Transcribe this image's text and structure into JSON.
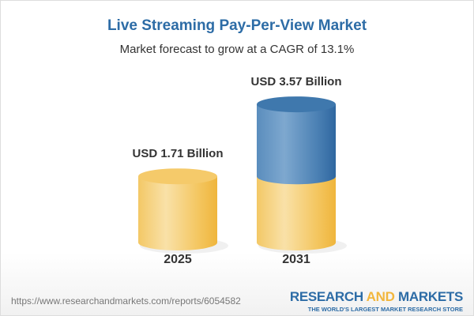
{
  "chart_data": {
    "type": "bar",
    "title": "Live Streaming Pay-Per-View Market",
    "subtitle": "Market forecast to grow at a CAGR of 13.1%",
    "categories": [
      "2025",
      "2031"
    ],
    "values": [
      1.71,
      3.57
    ],
    "data_labels": [
      "USD 1.71 Billion",
      "USD 3.57 Billion"
    ],
    "unit": "USD Billion",
    "style": "3d-cylinder",
    "colors": {
      "base": "#f4c55e",
      "growth": "#3f78ad"
    }
  },
  "footer": {
    "url": "https://www.researchandmarkets.com/reports/6054582",
    "logo_word1": "RESEARCH",
    "logo_word2": "AND",
    "logo_word3": "MARKETS",
    "logo_tagline": "THE WORLD'S LARGEST MARKET RESEARCH STORE"
  }
}
